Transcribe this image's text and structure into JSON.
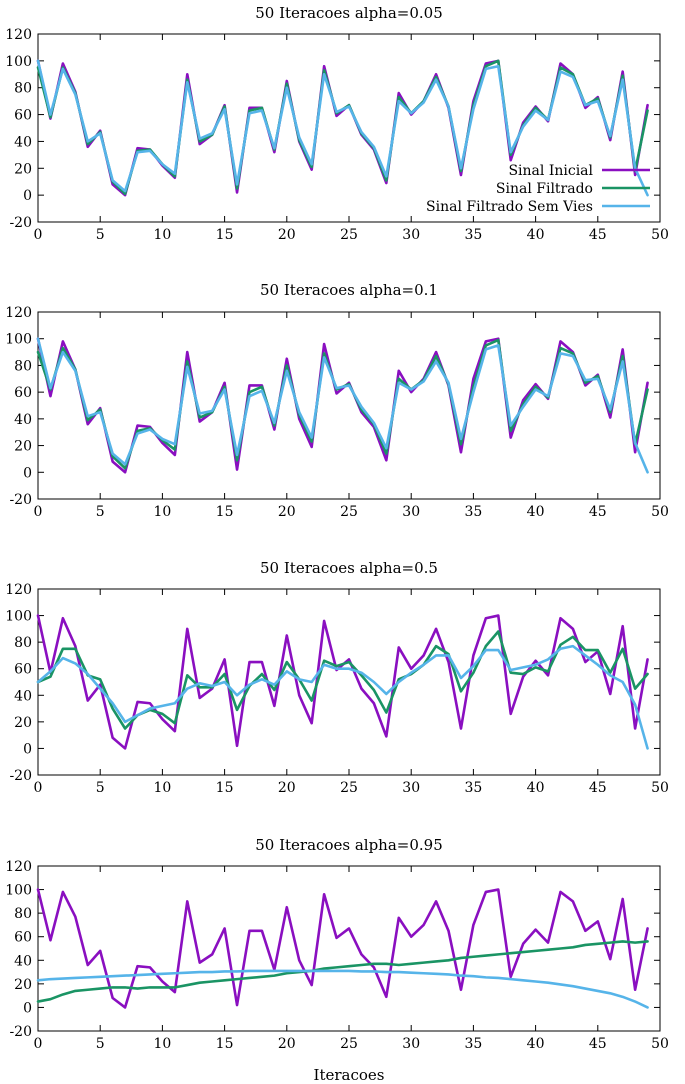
{
  "chart_data": [
    {
      "type": "line",
      "title": "50 Iteracoes alpha=0.05",
      "xlabel": "",
      "ylabel": "",
      "xlim": [
        0,
        50
      ],
      "ylim": [
        -20,
        120
      ],
      "xticks": [
        0,
        5,
        10,
        15,
        20,
        25,
        30,
        35,
        40,
        45,
        50
      ],
      "yticks": [
        -20,
        0,
        20,
        40,
        60,
        80,
        100,
        120
      ],
      "legend": "right",
      "show_legend": true,
      "series": [
        {
          "name": "Sinal Inicial",
          "color": "#8a0fc0",
          "values": [
            100,
            57,
            98,
            77,
            36,
            48,
            8,
            0,
            35,
            34,
            22,
            13,
            90,
            38,
            45,
            67,
            2,
            65,
            65,
            32,
            85,
            40,
            19,
            96,
            59,
            67,
            45,
            34,
            9,
            76,
            60,
            70,
            90,
            65,
            15,
            70,
            98,
            100,
            26,
            54,
            66,
            55,
            98,
            90,
            65,
            73,
            41,
            92,
            15,
            67
          ]
        },
        {
          "name": "Sinal Filtrado",
          "color": "#1a9464",
          "values": [
            95,
            58,
            95,
            76,
            38,
            47,
            10,
            1,
            33,
            34,
            23,
            14,
            86,
            40,
            45,
            66,
            5,
            63,
            65,
            34,
            83,
            41,
            21,
            93,
            61,
            67,
            46,
            35,
            11,
            73,
            61,
            70,
            88,
            66,
            18,
            67,
            96,
            100,
            30,
            52,
            65,
            56,
            95,
            90,
            67,
            72,
            43,
            89,
            18,
            63
          ]
        },
        {
          "name": "Sinal Filtrado Sem Vies",
          "color": "#56b4e9",
          "values": [
            100,
            60,
            94,
            75,
            40,
            46,
            11,
            3,
            32,
            33,
            23,
            16,
            84,
            42,
            46,
            64,
            8,
            61,
            63,
            35,
            80,
            43,
            23,
            90,
            62,
            66,
            47,
            36,
            14,
            70,
            61,
            69,
            86,
            66,
            20,
            64,
            94,
            96,
            32,
            51,
            63,
            56,
            92,
            88,
            67,
            70,
            44,
            86,
            20,
            0
          ]
        }
      ]
    },
    {
      "type": "line",
      "title": "50 Iteracoes alpha=0.1",
      "xlabel": "",
      "ylabel": "",
      "xlim": [
        0,
        50
      ],
      "ylim": [
        -20,
        120
      ],
      "xticks": [
        0,
        5,
        10,
        15,
        20,
        25,
        30,
        35,
        40,
        45,
        50
      ],
      "yticks": [
        -20,
        0,
        20,
        40,
        60,
        80,
        100,
        120
      ],
      "show_legend": false,
      "series": [
        {
          "name": "Sinal Inicial",
          "color": "#8a0fc0",
          "values": [
            100,
            57,
            98,
            77,
            36,
            48,
            8,
            0,
            35,
            34,
            22,
            13,
            90,
            38,
            45,
            67,
            2,
            65,
            65,
            32,
            85,
            40,
            19,
            96,
            59,
            67,
            45,
            34,
            9,
            76,
            60,
            70,
            90,
            65,
            15,
            70,
            98,
            100,
            26,
            54,
            66,
            55,
            98,
            90,
            65,
            73,
            41,
            92,
            15,
            67
          ]
        },
        {
          "name": "Sinal Filtrado",
          "color": "#1a9464",
          "values": [
            90,
            62,
            93,
            77,
            39,
            47,
            12,
            3,
            31,
            33,
            24,
            17,
            83,
            41,
            45,
            64,
            9,
            60,
            64,
            35,
            80,
            43,
            23,
            89,
            62,
            66,
            47,
            36,
            14,
            70,
            62,
            69,
            87,
            66,
            21,
            64,
            95,
            99,
            31,
            51,
            64,
            56,
            93,
            89,
            67,
            72,
            45,
            87,
            21,
            62
          ]
        },
        {
          "name": "Sinal Filtrado Sem Vies",
          "color": "#56b4e9",
          "values": [
            100,
            63,
            90,
            76,
            42,
            45,
            14,
            6,
            29,
            32,
            25,
            21,
            79,
            44,
            46,
            62,
            13,
            57,
            61,
            37,
            76,
            45,
            26,
            86,
            63,
            65,
            49,
            37,
            18,
            67,
            62,
            68,
            83,
            67,
            25,
            60,
            92,
            95,
            35,
            49,
            62,
            57,
            89,
            87,
            69,
            70,
            47,
            83,
            22,
            0
          ]
        }
      ]
    },
    {
      "type": "line",
      "title": "50 Iteracoes alpha=0.5",
      "xlabel": "",
      "ylabel": "",
      "xlim": [
        0,
        50
      ],
      "ylim": [
        -20,
        120
      ],
      "xticks": [
        0,
        5,
        10,
        15,
        20,
        25,
        30,
        35,
        40,
        45,
        50
      ],
      "yticks": [
        -20,
        0,
        20,
        40,
        60,
        80,
        100,
        120
      ],
      "show_legend": false,
      "series": [
        {
          "name": "Sinal Inicial",
          "color": "#8a0fc0",
          "values": [
            100,
            57,
            98,
            77,
            36,
            48,
            8,
            0,
            35,
            34,
            22,
            13,
            90,
            38,
            45,
            67,
            2,
            65,
            65,
            32,
            85,
            40,
            19,
            96,
            59,
            67,
            45,
            34,
            9,
            76,
            60,
            70,
            90,
            65,
            15,
            70,
            98,
            100,
            26,
            54,
            66,
            55,
            98,
            90,
            65,
            73,
            41,
            92,
            15,
            67
          ]
        },
        {
          "name": "Sinal Filtrado",
          "color": "#1a9464",
          "values": [
            50,
            54,
            75,
            75,
            55,
            52,
            30,
            15,
            25,
            29,
            26,
            19,
            55,
            46,
            46,
            56,
            29,
            47,
            56,
            44,
            65,
            52,
            36,
            66,
            62,
            65,
            55,
            44,
            27,
            52,
            56,
            63,
            77,
            71,
            43,
            57,
            77,
            88,
            57,
            56,
            61,
            58,
            78,
            84,
            74,
            74,
            57,
            75,
            45,
            56
          ]
        },
        {
          "name": "Sinal Filtrado Sem Vies",
          "color": "#56b4e9",
          "values": [
            50,
            58,
            68,
            64,
            56,
            45,
            34,
            20,
            25,
            30,
            32,
            34,
            45,
            49,
            47,
            50,
            40,
            48,
            52,
            48,
            58,
            52,
            50,
            63,
            60,
            60,
            57,
            50,
            41,
            50,
            57,
            63,
            70,
            70,
            53,
            62,
            74,
            74,
            59,
            61,
            63,
            67,
            75,
            77,
            70,
            63,
            55,
            50,
            33,
            0
          ]
        }
      ]
    },
    {
      "type": "line",
      "title": "50 Iteracoes alpha=0.95",
      "xlabel": "Iteracoes",
      "ylabel": "",
      "xlim": [
        0,
        50
      ],
      "ylim": [
        -20,
        120
      ],
      "xticks": [
        0,
        5,
        10,
        15,
        20,
        25,
        30,
        35,
        40,
        45,
        50
      ],
      "yticks": [
        -20,
        0,
        20,
        40,
        60,
        80,
        100,
        120
      ],
      "show_legend": false,
      "series": [
        {
          "name": "Sinal Inicial",
          "color": "#8a0fc0",
          "values": [
            100,
            57,
            98,
            77,
            36,
            48,
            8,
            0,
            35,
            34,
            22,
            13,
            90,
            38,
            45,
            67,
            2,
            65,
            65,
            32,
            85,
            40,
            19,
            96,
            59,
            67,
            45,
            34,
            9,
            76,
            60,
            70,
            90,
            65,
            15,
            70,
            98,
            100,
            26,
            54,
            66,
            55,
            98,
            90,
            65,
            73,
            41,
            92,
            15,
            67
          ]
        },
        {
          "name": "Sinal Filtrado",
          "color": "#1a9464",
          "values": [
            5,
            7,
            11,
            14,
            15,
            16,
            17,
            17,
            16,
            17,
            17,
            17,
            19,
            21,
            22,
            23,
            24,
            25,
            26,
            27,
            29,
            30,
            31,
            33,
            34,
            35,
            36,
            37,
            37,
            36,
            37,
            38,
            39,
            40,
            42,
            43,
            44,
            45,
            46,
            47,
            48,
            49,
            50,
            51,
            53,
            54,
            55,
            56,
            55,
            56
          ]
        },
        {
          "name": "Sinal Filtrado Sem Vies",
          "color": "#56b4e9",
          "values": [
            23,
            24,
            24.5,
            25,
            25.5,
            26,
            26.5,
            27,
            27.5,
            28,
            28.5,
            29,
            29.5,
            30,
            30,
            30.5,
            30.5,
            31,
            31,
            31,
            31,
            31,
            31,
            31,
            31,
            31,
            30.5,
            30.5,
            30,
            30,
            29.5,
            29,
            28.5,
            28,
            27,
            26.5,
            25.5,
            25,
            24,
            23,
            22,
            21,
            19.5,
            18,
            16,
            14,
            12,
            9,
            5,
            0
          ]
        }
      ]
    }
  ]
}
